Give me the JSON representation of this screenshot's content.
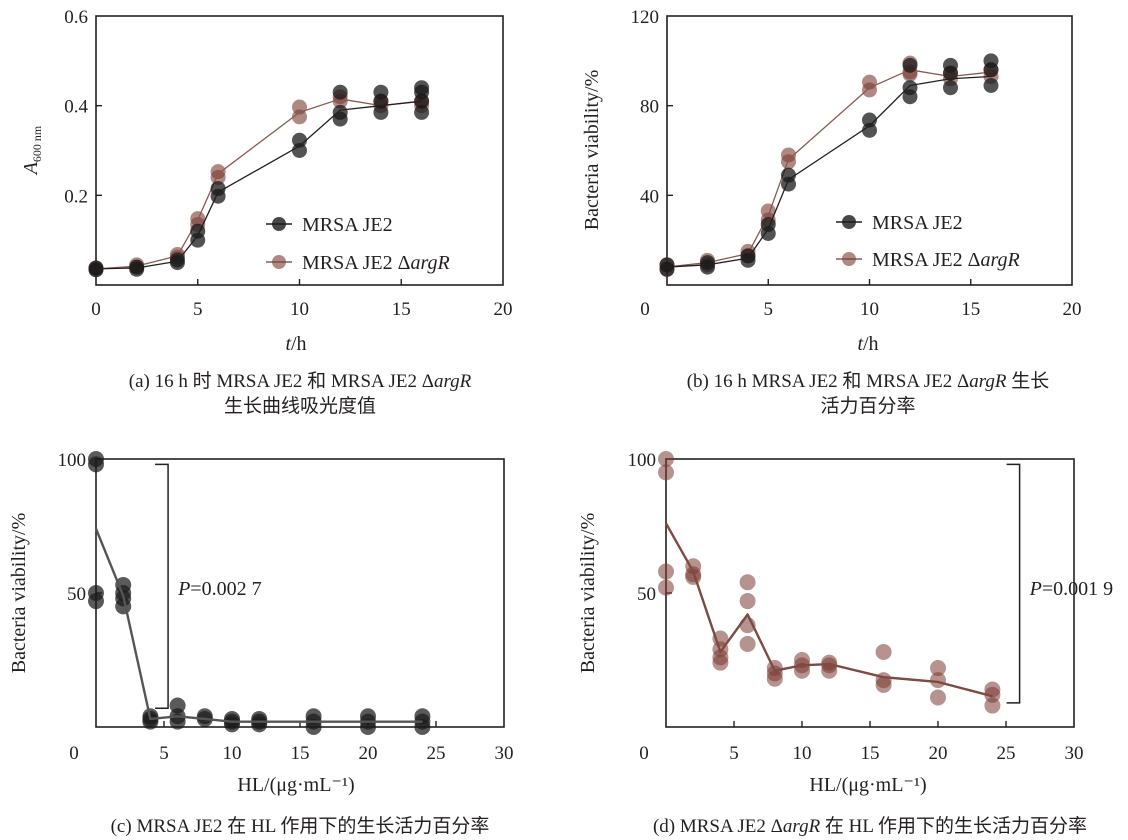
{
  "colors": {
    "je2": "#1a1a1a",
    "argr": "#7a3a32",
    "je2_line": "#231f20",
    "argr_line": "#8a5a52",
    "hl_je2_line": "#555555",
    "hl_argr_line": "#7e4a42"
  },
  "chart_data": [
    {
      "id": "a",
      "type": "line",
      "xlabel_italic": "t",
      "xlabel_rest": "/h",
      "ylabel_main": "A",
      "ylabel_sub": "600 nm",
      "xlim": [
        0,
        20
      ],
      "ylim": [
        0,
        0.6
      ],
      "xticks": [
        0,
        5,
        10,
        15,
        20
      ],
      "yticks": [
        0.2,
        0.4,
        0.6
      ],
      "ytick_labels": [
        "0.2",
        "0.4",
        "0.6"
      ],
      "xtick_labels": [
        "0",
        "5",
        "10",
        "15",
        "20"
      ],
      "grid": false,
      "legend_position": "lower-right",
      "x": [
        0,
        2,
        4,
        5,
        6,
        10,
        12,
        14,
        16
      ],
      "series": [
        {
          "name": "MRSA JE2",
          "name_plain": "MRSA JE2",
          "name_italic": "",
          "mean": [
            0.036,
            0.038,
            0.053,
            0.11,
            0.207,
            0.31,
            0.39,
            0.4,
            0.41
          ],
          "replicates": [
            [
              0.034,
              0.038
            ],
            [
              0.035,
              0.04
            ],
            [
              0.05,
              0.056
            ],
            [
              0.1,
              0.12
            ],
            [
              0.198,
              0.215
            ],
            [
              0.3,
              0.323
            ],
            [
              0.37,
              0.385,
              0.43
            ],
            [
              0.385,
              0.41,
              0.43
            ],
            [
              0.385,
              0.41,
              0.43,
              0.44
            ]
          ]
        },
        {
          "name": "MRSA JE2 ΔargR",
          "name_plain": "MRSA JE2 Δ",
          "name_italic": "argR",
          "mean": [
            0.036,
            0.042,
            0.065,
            0.145,
            0.248,
            0.385,
            0.415,
            0.4,
            0.41
          ],
          "replicates": [
            [
              0.034,
              0.038
            ],
            [
              0.04,
              0.045
            ],
            [
              0.062,
              0.068
            ],
            [
              0.135,
              0.148
            ],
            [
              0.24,
              0.253
            ],
            [
              0.375,
              0.397
            ],
            [
              0.41,
              0.42
            ],
            [
              0.4,
              0.41
            ],
            [
              0.4,
              0.41
            ]
          ]
        }
      ],
      "caption_line1_pre": "(a) 16 h 时 MRSA JE2 和 MRSA JE2 Δ",
      "caption_line1_italic": "argR",
      "caption_line2": "生长曲线吸光度值"
    },
    {
      "id": "b",
      "type": "line",
      "xlabel_italic": "t",
      "xlabel_rest": "/h",
      "ylabel": "Bacteria viability/%",
      "xlim": [
        0,
        20
      ],
      "ylim": [
        0,
        120
      ],
      "xticks": [
        0,
        5,
        10,
        15,
        20
      ],
      "yticks": [
        40,
        80,
        120
      ],
      "ytick_labels": [
        "40",
        "80",
        "120"
      ],
      "xtick_labels": [
        "0",
        "5",
        "10",
        "15",
        "20"
      ],
      "grid": false,
      "legend_position": "lower-right",
      "x": [
        0,
        2,
        4,
        5,
        6,
        10,
        12,
        14,
        16
      ],
      "series": [
        {
          "name": "MRSA JE2",
          "name_plain": "MRSA JE2",
          "name_italic": "",
          "mean": [
            8,
            9,
            12,
            25,
            47,
            71,
            89,
            92,
            93
          ],
          "replicates": [
            [
              7,
              9
            ],
            [
              8,
              10
            ],
            [
              11,
              13
            ],
            [
              23,
              27
            ],
            [
              45,
              49
            ],
            [
              69,
              73.6
            ],
            [
              84,
              88,
              98
            ],
            [
              88,
              94.5,
              98
            ],
            [
              89,
              96,
              100
            ]
          ]
        },
        {
          "name": "MRSA JE2 ΔargR",
          "name_plain": "MRSA JE2 Δ",
          "name_italic": "argR",
          "mean": [
            8,
            10,
            14,
            31,
            56,
            88,
            96,
            93,
            95
          ],
          "replicates": [
            [
              7,
              9
            ],
            [
              9,
              11
            ],
            [
              13,
              15
            ],
            [
              29,
              33
            ],
            [
              55,
              58
            ],
            [
              87,
              90.5
            ],
            [
              94,
              95,
              99
            ],
            [
              92,
              94.5
            ],
            [
              93,
              96
            ]
          ]
        }
      ],
      "caption_line1_pre": "(b) 16 h MRSA JE2 和 MRSA JE2 Δ",
      "caption_line1_italic": "argR",
      "caption_line1_post": " 生长",
      "caption_line2": "活力百分率"
    },
    {
      "id": "c",
      "type": "scatter",
      "xlabel": "HL/(μg·mL⁻¹)",
      "ylabel": "Bacteria viability/%",
      "xlim": [
        0,
        30
      ],
      "ylim": [
        0,
        100
      ],
      "xticks": [
        0,
        5,
        10,
        15,
        20,
        25,
        30
      ],
      "xtick_labels": [
        "0",
        "5",
        "10",
        "15",
        "20",
        "25",
        "30"
      ],
      "yticks": [
        50,
        100
      ],
      "ytick_labels": [
        "50",
        "100"
      ],
      "grid": false,
      "x": [
        0,
        2,
        4,
        6,
        8,
        10,
        12,
        16,
        20,
        24
      ],
      "series": [
        {
          "name": "MRSA JE2",
          "mean": [
            74,
            49,
            3,
            4,
            3,
            2,
            2,
            2,
            2,
            2
          ],
          "replicates": [
            [
              100,
              98,
              50,
              47
            ],
            [
              53,
              50,
              48,
              45
            ],
            [
              4,
              3,
              2
            ],
            [
              8,
              4,
              2
            ],
            [
              4,
              3
            ],
            [
              3,
              2,
              1
            ],
            [
              3,
              2,
              1
            ],
            [
              4,
              2,
              0
            ],
            [
              4,
              2,
              0
            ],
            [
              4,
              2,
              0
            ]
          ]
        }
      ],
      "bracket": {
        "y_top": 98,
        "y_bottom": 7,
        "x": 5.3
      },
      "annotation_italic": "P",
      "annotation_rest": "=0.002 7",
      "caption": "(c) MRSA JE2 在 HL 作用下的生长活力百分率"
    },
    {
      "id": "d",
      "type": "scatter",
      "xlabel": "HL/(μg·mL⁻¹)",
      "ylabel": "Bacteria viability/%",
      "xlim": [
        0,
        30
      ],
      "ylim": [
        0,
        100
      ],
      "xticks": [
        0,
        5,
        10,
        15,
        20,
        25,
        30
      ],
      "xtick_labels": [
        "0",
        "5",
        "10",
        "15",
        "20",
        "25",
        "30"
      ],
      "yticks": [
        50,
        100
      ],
      "ytick_labels": [
        "50",
        "100"
      ],
      "grid": false,
      "x": [
        0,
        2,
        4,
        6,
        8,
        10,
        12,
        16,
        20,
        24
      ],
      "series": [
        {
          "name": "MRSA JE2 ΔargR",
          "mean": [
            76,
            58,
            28,
            42,
            21,
            23,
            23.5,
            18.6,
            16.8,
            11.5
          ],
          "replicates": [
            [
              100,
              95,
              58,
              52
            ],
            [
              60,
              57,
              56
            ],
            [
              33,
              29,
              26,
              24
            ],
            [
              54,
              47,
              38,
              31
            ],
            [
              22,
              20,
              18
            ],
            [
              25,
              23,
              21
            ],
            [
              24,
              23,
              21
            ],
            [
              28,
              17.5,
              15.7
            ],
            [
              22,
              17.5,
              11
            ],
            [
              14,
              12,
              8
            ]
          ]
        }
      ],
      "bracket": {
        "y_top": 98,
        "y_bottom": 9,
        "x": 26
      },
      "annotation_italic": "P",
      "annotation_rest": "=0.001 9",
      "caption_pre": "(d) MRSA JE2 Δ",
      "caption_italic": "argR",
      "caption_post": " 在 HL 作用下的生长活力百分率"
    }
  ]
}
